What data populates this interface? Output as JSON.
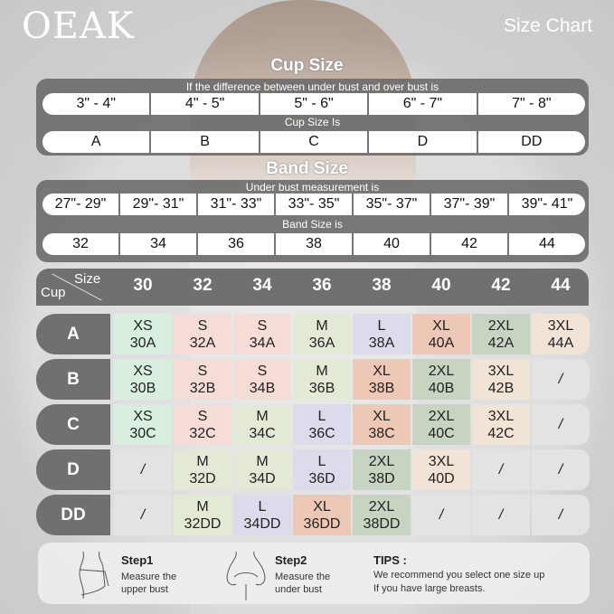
{
  "brand": "OEAK",
  "title": "Size Chart",
  "cup_size": {
    "heading": "Cup Size",
    "label1": "If the  difference between under bust and over bust is",
    "differences": [
      "3\" - 4\"",
      "4\" - 5\"",
      "5\" - 6\"",
      "6\" - 7\"",
      "7\" - 8\""
    ],
    "label2": "Cup Size Is",
    "cups": [
      "A",
      "B",
      "C",
      "D",
      "DD"
    ]
  },
  "band_size": {
    "heading": "Band Size",
    "label1": "Under bust measurement is",
    "measurements": [
      "27\"- 29\"",
      "29\"- 31\"",
      "31\"- 33\"",
      "33\"- 35\"",
      "35\"- 37\"",
      "37\"- 39\"",
      "39\"- 41\""
    ],
    "label2": "Band Size is",
    "bands": [
      "32",
      "34",
      "36",
      "38",
      "40",
      "42",
      "44"
    ]
  },
  "grid": {
    "corner_size": "Size",
    "corner_cup": "Cup",
    "columns": [
      "30",
      "32",
      "34",
      "36",
      "38",
      "40",
      "42",
      "44"
    ],
    "rows": [
      {
        "cup": "A",
        "cells": [
          "XS 30A",
          "S 32A",
          "S 34A",
          "M 36A",
          "L 38A",
          "XL 40A",
          "2XL 42A",
          "3XL 44A"
        ]
      },
      {
        "cup": "B",
        "cells": [
          "XS 30B",
          "S 32B",
          "S 34B",
          "M 36B",
          "XL 38B",
          "2XL 40B",
          "3XL 42B",
          "/"
        ]
      },
      {
        "cup": "C",
        "cells": [
          "XS 30C",
          "S 32C",
          "M 34C",
          "L 36C",
          "XL 38C",
          "2XL 40C",
          "3XL 42C",
          "/"
        ]
      },
      {
        "cup": "D",
        "cells": [
          "/",
          "M 32D",
          "M 34D",
          "L 36D",
          "2XL 38D",
          "3XL 40D",
          "/",
          "/"
        ]
      },
      {
        "cup": "DD",
        "cells": [
          "/",
          "M 32DD",
          "L 34DD",
          "XL 36DD",
          "2XL 38DD",
          "/",
          "/",
          "/"
        ]
      }
    ],
    "size_colors": {
      "XS": "#d8eedf",
      "S": "#f5dcd6",
      "M": "#e2e9d4",
      "L": "#dcdbeb",
      "XL": "#eec8b6",
      "2XL": "#c7d4c2",
      "3XL": "#f1e3d6",
      "/": "#e3e3e3"
    }
  },
  "instructions": {
    "step1_title": "Step1",
    "step1_text": "Measure the upper bust",
    "step2_title": "Step2",
    "step2_text": "Measure the under bust",
    "tips_title": "TIPS :",
    "tips_text1": "We recommend you select one size up",
    "tips_text2": "If you have large breasts."
  },
  "colors": {
    "panel": "#707070",
    "text_light": "#ffffff"
  }
}
